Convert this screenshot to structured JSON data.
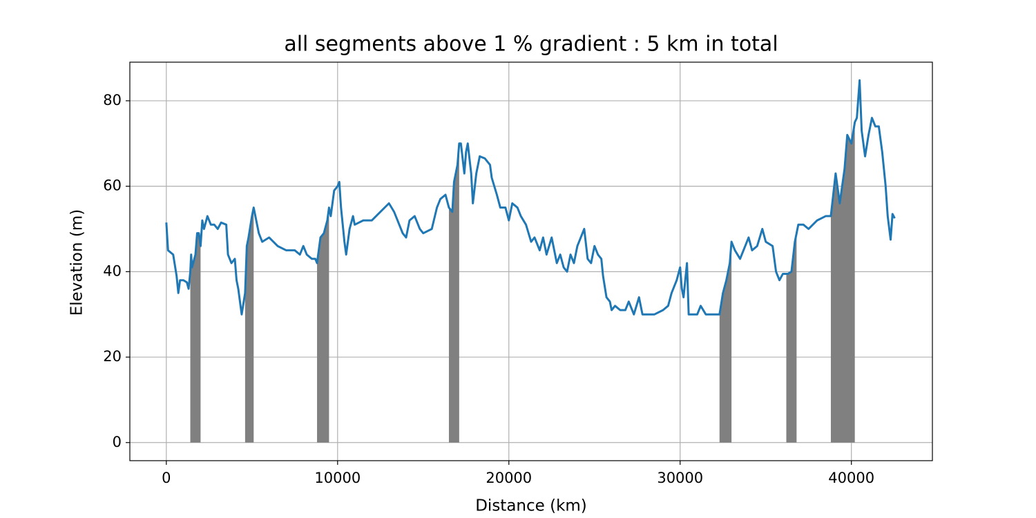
{
  "chart_data": {
    "type": "line",
    "title": "all segments above 1 % gradient : 5 km in total",
    "xlabel": "Distance (km)",
    "ylabel": "Elevation (m)",
    "xlim": [
      -2130,
      44730
    ],
    "ylim": [
      -4.24,
      89.04
    ],
    "xticks": [
      0,
      10000,
      20000,
      30000,
      40000
    ],
    "yticks": [
      0,
      20,
      40,
      60,
      80
    ],
    "grid": true,
    "series": [
      {
        "color": "#1f77b4",
        "x": [
          0,
          100,
          400,
          600,
          700,
          800,
          1000,
          1200,
          1300,
          1400,
          1450,
          1500,
          1700,
          1800,
          1900,
          2000,
          2100,
          2200,
          2400,
          2600,
          2800,
          3000,
          3200,
          3500,
          3600,
          3800,
          4000,
          4100,
          4200,
          4300,
          4400,
          4600,
          4700,
          4800,
          5000,
          5100,
          5300,
          5400,
          5600,
          6000,
          6500,
          7000,
          7500,
          7800,
          8000,
          8200,
          8500,
          8700,
          8800,
          9000,
          9200,
          9400,
          9500,
          9600,
          9700,
          9800,
          10000,
          10100,
          10200,
          10400,
          10500,
          10700,
          10900,
          11000,
          11500,
          12000,
          12500,
          13000,
          13300,
          13500,
          13800,
          14000,
          14200,
          14500,
          14800,
          15000,
          15500,
          15800,
          16000,
          16300,
          16500,
          16700,
          16800,
          17000,
          17100,
          17200,
          17400,
          17500,
          17600,
          17800,
          17900,
          18100,
          18300,
          18600,
          18900,
          19000,
          19300,
          19500,
          19800,
          20000,
          20200,
          20500,
          20700,
          21000,
          21300,
          21500,
          21800,
          22000,
          22200,
          22500,
          22800,
          23000,
          23200,
          23400,
          23600,
          23800,
          24000,
          24400,
          24600,
          24800,
          25000,
          25200,
          25400,
          25500,
          25700,
          25900,
          26000,
          26200,
          26500,
          26800,
          27000,
          27300,
          27600,
          27800,
          28500,
          29000,
          29300,
          29500,
          29800,
          30000,
          30100,
          30200,
          30400,
          30500,
          31000,
          31200,
          31500,
          32000,
          32300,
          32500,
          32700,
          32900,
          33000,
          33200,
          33500,
          34000,
          34200,
          34500,
          34800,
          35000,
          35400,
          35600,
          35800,
          36000,
          36300,
          36500,
          36700,
          36900,
          37200,
          37500,
          38000,
          38500,
          38800,
          39080,
          39320,
          39600,
          39760,
          40000,
          40200,
          40320,
          40480,
          40600,
          40800,
          41000,
          41200,
          41400,
          41600,
          41800,
          42000,
          42120,
          42290,
          42400,
          42530
        ],
        "values": [
          51.5,
          45,
          44,
          39,
          35,
          38,
          38,
          37.5,
          36,
          40,
          44,
          41,
          44,
          49,
          49,
          46,
          52,
          50,
          53,
          51,
          51,
          50,
          51.5,
          51,
          44,
          42,
          43,
          38,
          36,
          33,
          30,
          35,
          46,
          48,
          53,
          55,
          51,
          49,
          47,
          48,
          46,
          45,
          45,
          44,
          46,
          44,
          43,
          43,
          42,
          48,
          49,
          52,
          55,
          53,
          56,
          59,
          60,
          61,
          55,
          47,
          44,
          50,
          53,
          51,
          52,
          52,
          54,
          56,
          54,
          52,
          49,
          48,
          52,
          53,
          50,
          49,
          50,
          55,
          57,
          58,
          55,
          54,
          61,
          65,
          70,
          70,
          63,
          68,
          70,
          63,
          56,
          63,
          67,
          66.5,
          65,
          62,
          58,
          55,
          55,
          52,
          56,
          55,
          53,
          51,
          47,
          48,
          45,
          48,
          44,
          48,
          42,
          44,
          41,
          40,
          44,
          42,
          46,
          50,
          43,
          42,
          46,
          44,
          43,
          39,
          34,
          33,
          31,
          32,
          31,
          31,
          33,
          30,
          34,
          30,
          30,
          31,
          32,
          35,
          38,
          41,
          36,
          34,
          42,
          30,
          30,
          32,
          30,
          30,
          30,
          35,
          38,
          42,
          47,
          45,
          43,
          48,
          45,
          46,
          50,
          47,
          46,
          40,
          38,
          39.5,
          39.5,
          40,
          47,
          51,
          51,
          50,
          52,
          53,
          53,
          63,
          56,
          64,
          72,
          70,
          75,
          76,
          84.8,
          73,
          67,
          72,
          76,
          74,
          74,
          68,
          60,
          53,
          47.5,
          53.5,
          52.5
        ]
      }
    ],
    "segments": [
      [
        1400,
        2000
      ],
      [
        4600,
        5100
      ],
      [
        8800,
        9500
      ],
      [
        16500,
        17100
      ],
      [
        32300,
        33000
      ],
      [
        36200,
        36800
      ],
      [
        38800,
        40200
      ]
    ],
    "segment_color": "#808080"
  }
}
